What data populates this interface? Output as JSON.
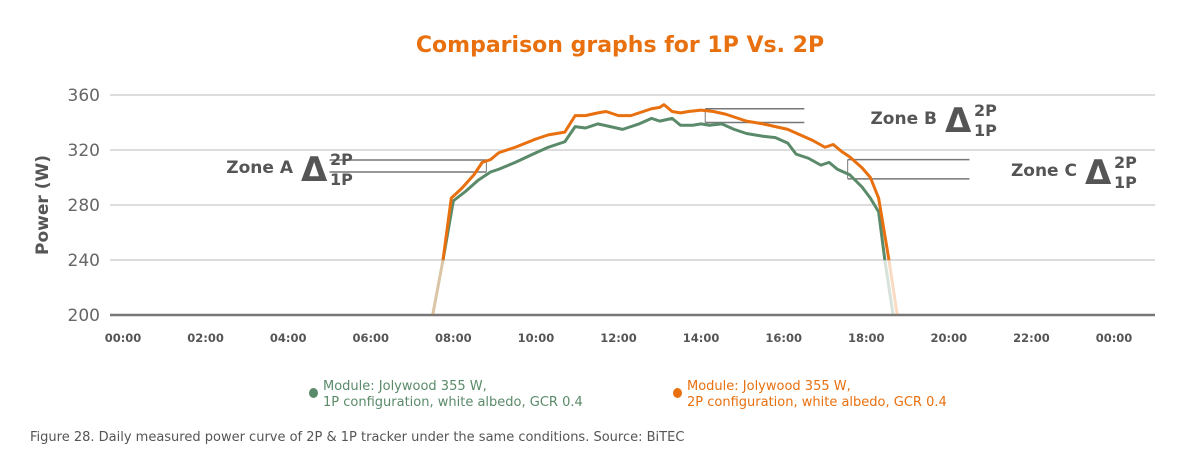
{
  "chart_data": {
    "type": "line",
    "title": "Comparison graphs for 1P Vs. 2P",
    "ylabel": "Power (W)",
    "xlabel": "",
    "ylim": [
      200,
      360
    ],
    "yticks": [
      "200",
      "240",
      "280",
      "320",
      "360"
    ],
    "xlim": [
      0,
      24
    ],
    "xticks": [
      "00:00",
      "02:00",
      "04:00",
      "06:00",
      "08:00",
      "10:00",
      "12:00",
      "14:00",
      "16:00",
      "18:00",
      "20:00",
      "22:00",
      "00:00"
    ],
    "grid": true,
    "legend_position": "bottom",
    "colors": {
      "1P": "#5A8A6A",
      "2P": "#E8700F"
    },
    "series": [
      {
        "name": "Module: Jolywood 355 W, 1P configuration, white albedo, GCR 0.4",
        "key": "1P",
        "x_hours": [
          7.5,
          7.75,
          8.0,
          8.3,
          8.6,
          8.9,
          9.1,
          9.5,
          10.0,
          10.3,
          10.7,
          10.95,
          11.2,
          11.5,
          11.8,
          12.1,
          12.3,
          12.5,
          12.8,
          13.0,
          13.3,
          13.5,
          13.8,
          14.0,
          14.2,
          14.5,
          14.8,
          15.1,
          15.5,
          15.8,
          16.1,
          16.3,
          16.6,
          16.9,
          17.1,
          17.3,
          17.6,
          17.9,
          18.1,
          18.3,
          18.45,
          18.65
        ],
        "y": [
          200,
          240,
          283,
          290,
          298,
          304,
          306,
          311,
          318,
          322,
          326,
          337,
          336,
          339,
          337,
          335,
          337,
          339,
          343,
          341,
          343,
          338,
          338,
          339,
          338,
          339,
          335,
          332,
          330,
          329,
          325,
          317,
          314,
          309,
          311,
          306,
          302,
          293,
          285,
          275,
          240,
          200
        ]
      },
      {
        "name": "Module: Jolywood 355 W, 2P configuration, white albedo, GCR 0.4",
        "key": "2P",
        "x_hours": [
          7.5,
          7.75,
          7.95,
          8.2,
          8.5,
          8.7,
          8.9,
          9.1,
          9.5,
          10.0,
          10.3,
          10.7,
          10.95,
          11.2,
          11.5,
          11.7,
          12.0,
          12.3,
          12.5,
          12.8,
          13.0,
          13.1,
          13.3,
          13.5,
          13.7,
          14.0,
          14.3,
          14.6,
          14.9,
          15.1,
          15.5,
          15.8,
          16.1,
          16.4,
          16.7,
          17.0,
          17.2,
          17.4,
          17.6,
          17.9,
          18.1,
          18.3,
          18.55,
          18.75
        ],
        "y": [
          200,
          240,
          285,
          292,
          302,
          311,
          313,
          318,
          322,
          328,
          331,
          333,
          345,
          345,
          347,
          348,
          345,
          345,
          347,
          350,
          351,
          353,
          348,
          347,
          348,
          349,
          348,
          346,
          343,
          341,
          339,
          337,
          335,
          331,
          327,
          322,
          324,
          319,
          315,
          307,
          300,
          285,
          240,
          200
        ]
      }
    ],
    "annotations": [
      {
        "label": "Zone A",
        "delta": "Δ",
        "top": "2P",
        "bottom": "1P",
        "x_from": 5.0,
        "x_to": 8.8,
        "y_2p": 312.7,
        "y_1p": 304
      },
      {
        "label": "Zone B",
        "delta": "Δ",
        "top": "2P",
        "bottom": "1P",
        "x_from": 14.1,
        "x_to": 16.5,
        "y_2p": 350,
        "y_1p": 340
      },
      {
        "label": "Zone C",
        "delta": "Δ",
        "top": "2P",
        "bottom": "1P",
        "x_from": 17.55,
        "x_to": 20.5,
        "y_2p": 313,
        "y_1p": 299
      }
    ]
  },
  "legend": {
    "items": [
      {
        "line1": "Module: Jolywood 355 W,",
        "line2": "1P configuration, white albedo, GCR 0.4"
      },
      {
        "line1": "Module: Jolywood 355 W,",
        "line2": "2P configuration, white albedo, GCR 0.4"
      }
    ]
  },
  "caption": "Figure 28. Daily measured power curve of 2P & 1P tracker under the same conditions. Source: BiTEC"
}
